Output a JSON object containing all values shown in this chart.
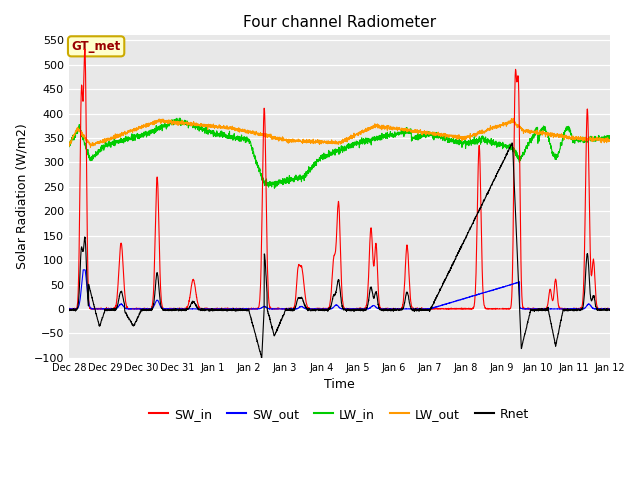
{
  "title": "Four channel Radiometer",
  "xlabel": "Time",
  "ylabel": "Solar Radiation (W/m2)",
  "ylim": [
    -100,
    560
  ],
  "yticks": [
    -100,
    -50,
    0,
    50,
    100,
    150,
    200,
    250,
    300,
    350,
    400,
    450,
    500,
    550
  ],
  "xtick_labels": [
    "Dec 28",
    "Dec 29",
    "Dec 30",
    "Dec 31",
    "Jan 1",
    "Jan 2",
    "Jan 3",
    "Jan 4",
    "Jan 5",
    "Jan 6",
    "Jan 7",
    "Jan 8",
    "Jan 9",
    "Jan 10",
    "Jan 11",
    "Jan 12"
  ],
  "colors": {
    "SW_in": "#ff0000",
    "SW_out": "#0000ff",
    "LW_in": "#00cc00",
    "LW_out": "#ff9900",
    "Rnet": "#000000"
  },
  "bg_color": "#e8e8e8",
  "annotation_text": "GT_met",
  "annotation_facecolor": "#ffffcc",
  "annotation_edgecolor": "#ccaa00",
  "annotation_textcolor": "#990000"
}
